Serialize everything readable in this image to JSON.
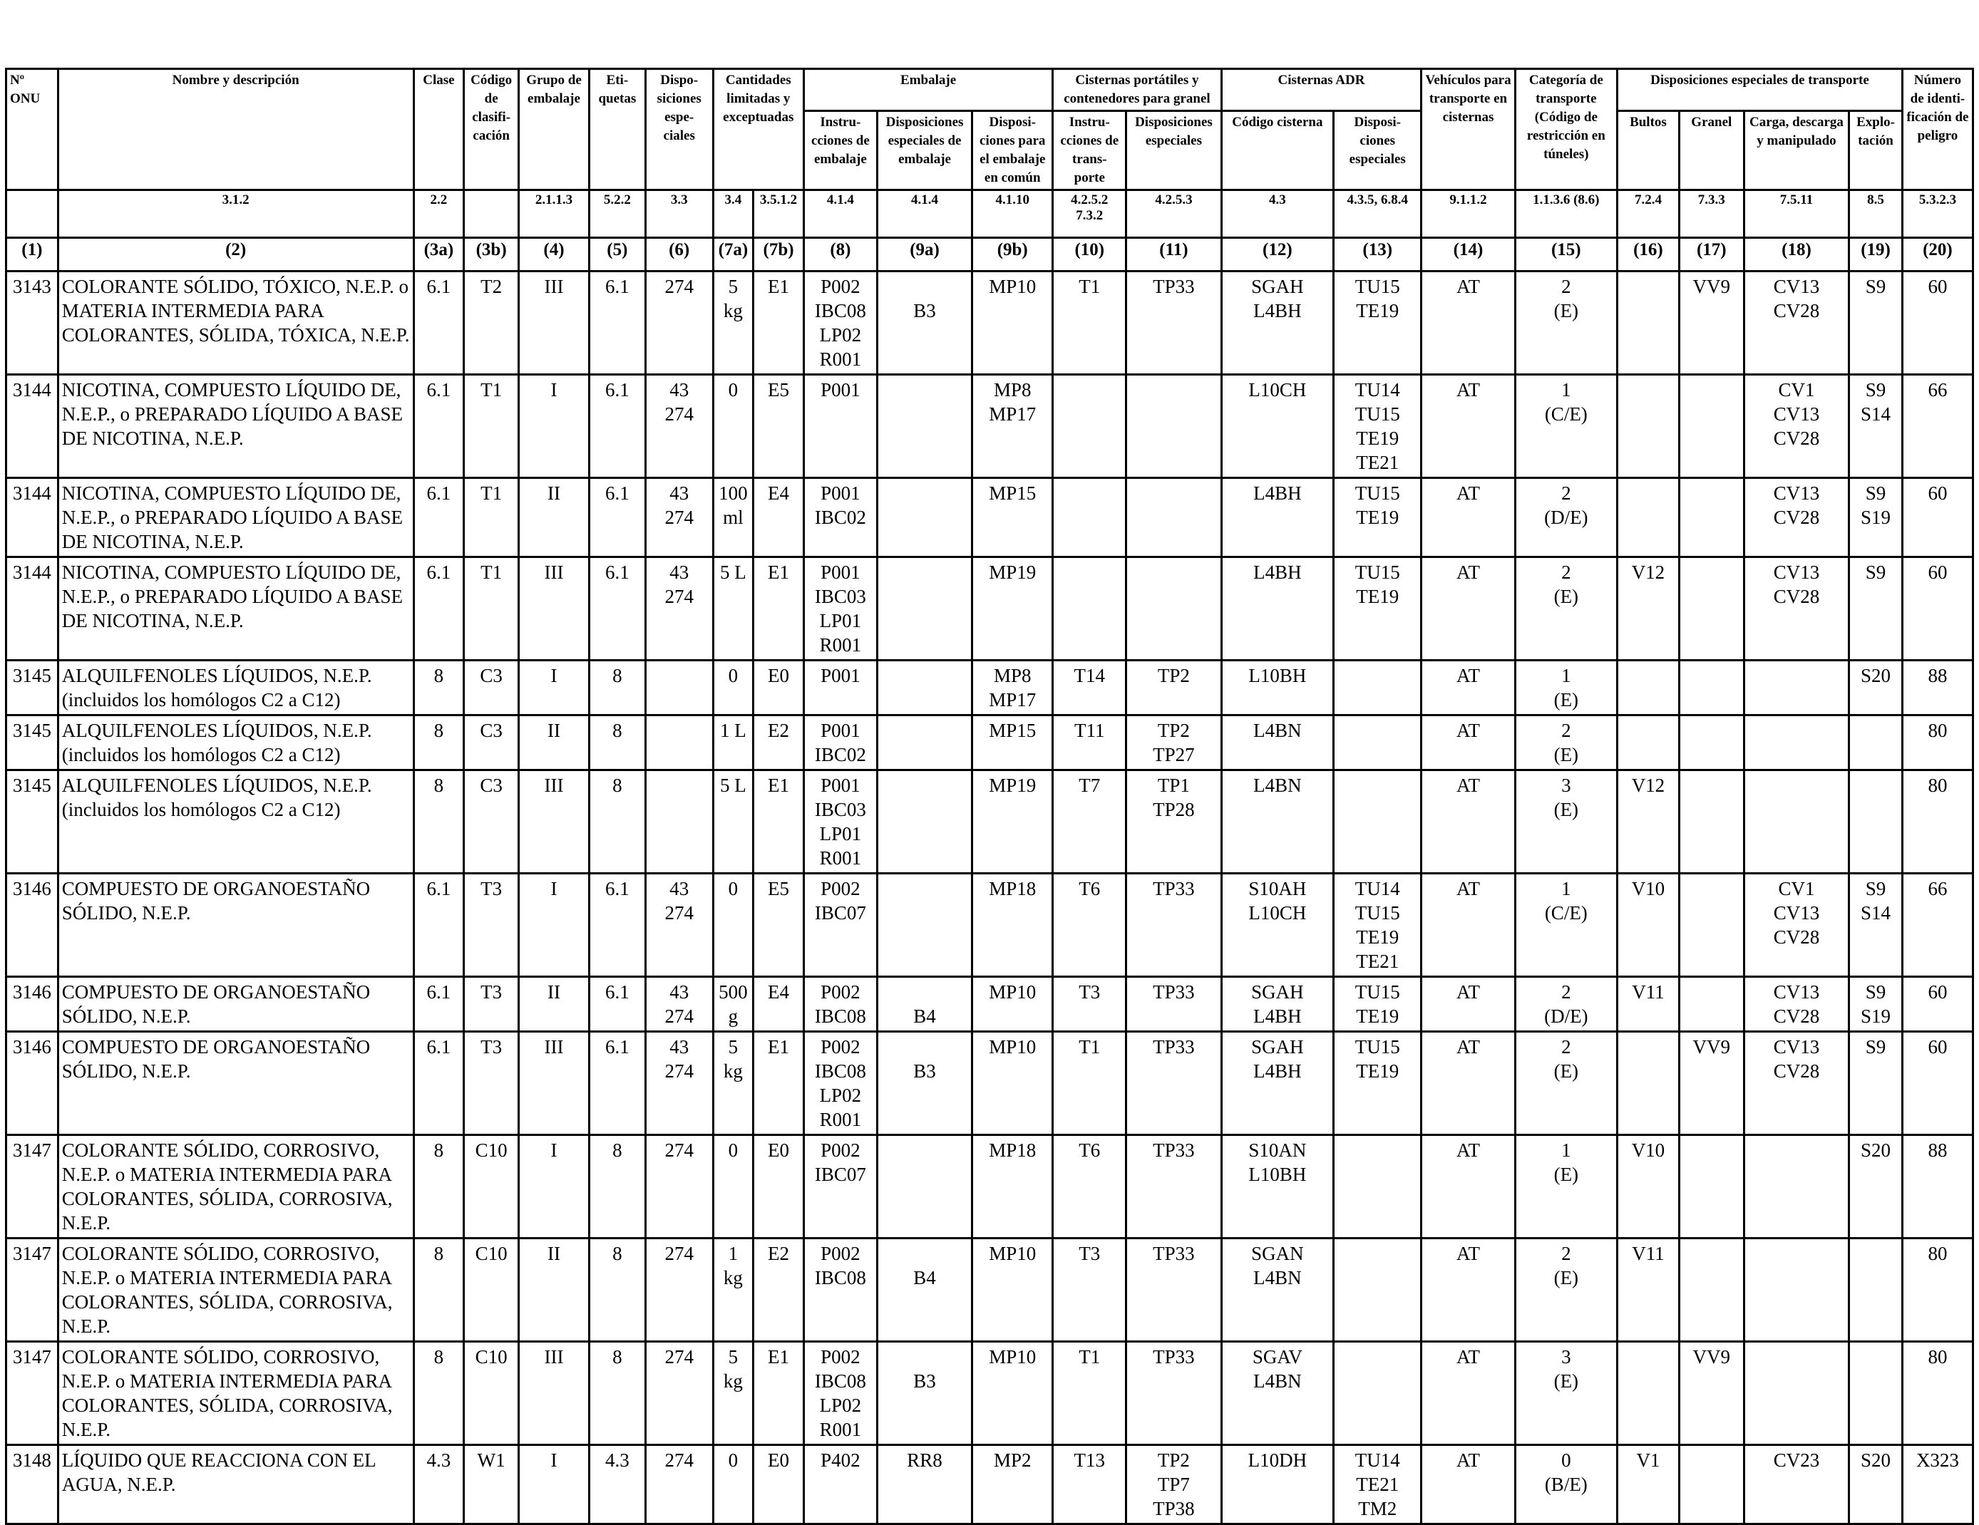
{
  "header": {
    "top": {
      "onu": "Nº ONU",
      "name": "Nombre y descripción",
      "clase": "Clase",
      "codigo": "Código de clasifi- cación",
      "grupo": "Grupo de embalaje",
      "etiquetas": "Eti- quetas",
      "disposiciones": "Dispo- siciones espe- ciales",
      "cantidades": "Cantidades limitadas y exceptuadas",
      "embalaje": "Embalaje",
      "cisternas_port": "Cisternas portátiles y contenedores para granel",
      "cisternas_adr": "Cisternas ADR",
      "vehiculos": "Vehículos para transporte en cisternas",
      "categoria": "Categoría de transporte (Código de restricción en túneles)",
      "disp_transporte": "Disposiciones especiales de transporte",
      "numero_ident": "Número de identi- ficación de peligro"
    },
    "sub": {
      "instr_embalaje": "Instru- cciones de embalaje",
      "disp_esp_embalaje": "Disposiciones especiales de embalaje",
      "disp_embalaje_comun": "Disposi- ciones para el embalaje en común",
      "instr_transporte": "Instru- cciones de trans- porte",
      "disp_esp_cisternas": "Disposiciones especiales",
      "codigo_cisterna": "Código cisterna",
      "disp_esp_adr": "Disposi- ciones especiales",
      "bultos": "Bultos",
      "granel": "Granel",
      "carga": "Carga, descarga y manipulado",
      "explotacion": "Explo- tación"
    },
    "refs": [
      "",
      "3.1.2",
      "2.2",
      "",
      "2.1.1.3",
      "5.2.2",
      "3.3",
      "3.4",
      "3.5.1.2",
      "4.1.4",
      "4.1.4",
      "4.1.10",
      "4.2.5.2 7.3.2",
      "4.2.5.3",
      "4.3",
      "4.3.5, 6.8.4",
      "9.1.1.2",
      "1.1.3.6 (8.6)",
      "7.2.4",
      "7.3.3",
      "7.5.11",
      "8.5",
      "5.3.2.3"
    ],
    "cols": [
      "(1)",
      "(2)",
      "(3a)",
      "(3b)",
      "(4)",
      "(5)",
      "(6)",
      "(7a)",
      "(7b)",
      "(8)",
      "(9a)",
      "(9b)",
      "(10)",
      "(11)",
      "(12)",
      "(13)",
      "(14)",
      "(15)",
      "(16)",
      "(17)",
      "(18)",
      "(19)",
      "(20)"
    ]
  },
  "rows": [
    [
      "3143",
      "COLORANTE SÓLIDO, TÓXICO, N.E.P. o MATERIA INTERMEDIA PARA COLORANTES, SÓLIDA, TÓXICA, N.E.P.",
      "6.1",
      "T2",
      "III",
      "6.1",
      "274",
      "5 kg",
      "E1",
      "P002\nIBC08\nLP02\nR001",
      "\nB3",
      "MP10",
      "T1",
      "TP33",
      "SGAH\nL4BH",
      "TU15\nTE19",
      "AT",
      "2\n(E)",
      "",
      "VV9",
      "CV13\nCV28",
      "S9",
      "60"
    ],
    [
      "3144",
      "NICOTINA, COMPUESTO LÍQUIDO DE, N.E.P., o PREPARADO LÍQUIDO A BASE DE NICOTINA, N.E.P.",
      "6.1",
      "T1",
      "I",
      "6.1",
      "43\n274",
      "0",
      "E5",
      "P001",
      "",
      "MP8\nMP17",
      "",
      "",
      "L10CH",
      "TU14\nTU15\nTE19\nTE21",
      "AT",
      "1\n(C/E)",
      "",
      "",
      "CV1\nCV13\nCV28",
      "S9\nS14",
      "66"
    ],
    [
      "3144",
      "NICOTINA, COMPUESTO LÍQUIDO DE, N.E.P., o PREPARADO LÍQUIDO A BASE DE NICOTINA, N.E.P.",
      "6.1",
      "T1",
      "II",
      "6.1",
      "43\n274",
      "100\nml",
      "E4",
      "P001\nIBC02",
      "",
      "MP15",
      "",
      "",
      "L4BH",
      "TU15\nTE19",
      "AT",
      "2\n(D/E)",
      "",
      "",
      "CV13\nCV28",
      "S9\nS19",
      "60"
    ],
    [
      "3144",
      "NICOTINA, COMPUESTO LÍQUIDO DE, N.E.P., o PREPARADO LÍQUIDO A BASE DE NICOTINA, N.E.P.",
      "6.1",
      "T1",
      "III",
      "6.1",
      "43\n274",
      "5 L",
      "E1",
      "P001\nIBC03\nLP01\nR001",
      "",
      "MP19",
      "",
      "",
      "L4BH",
      "TU15\nTE19",
      "AT",
      "2\n(E)",
      "V12",
      "",
      "CV13\nCV28",
      "S9",
      "60"
    ],
    [
      "3145",
      "ALQUILFENOLES LÍQUIDOS, N.E.P. (incluidos los homólogos C2 a C12)",
      "8",
      "C3",
      "I",
      "8",
      "",
      "0",
      "E0",
      "P001",
      "",
      "MP8\nMP17",
      "T14",
      "TP2",
      "L10BH",
      "",
      "AT",
      "1\n(E)",
      "",
      "",
      "",
      "S20",
      "88"
    ],
    [
      "3145",
      "ALQUILFENOLES LÍQUIDOS, N.E.P. (incluidos los homólogos C2 a C12)",
      "8",
      "C3",
      "II",
      "8",
      "",
      "1 L",
      "E2",
      "P001\nIBC02",
      "",
      "MP15",
      "T11",
      "TP2\nTP27",
      "L4BN",
      "",
      "AT",
      "2\n(E)",
      "",
      "",
      "",
      "",
      "80"
    ],
    [
      "3145",
      "ALQUILFENOLES LÍQUIDOS, N.E.P. (incluidos los homólogos C2 a C12)",
      "8",
      "C3",
      "III",
      "8",
      "",
      "5 L",
      "E1",
      "P001\nIBC03\nLP01\nR001",
      "",
      "MP19",
      "T7",
      "TP1\nTP28",
      "L4BN",
      "",
      "AT",
      "3\n(E)",
      "V12",
      "",
      "",
      "",
      "80"
    ],
    [
      "3146",
      "COMPUESTO DE ORGANOESTAÑO SÓLIDO, N.E.P.",
      "6.1",
      "T3",
      "I",
      "6.1",
      "43\n274",
      "0",
      "E5",
      "P002\nIBC07",
      "",
      "MP18",
      "T6",
      "TP33",
      "S10AH\nL10CH",
      "TU14\nTU15\nTE19\nTE21",
      "AT",
      "1\n(C/E)",
      "V10",
      "",
      "CV1\nCV13\nCV28",
      "S9\nS14",
      "66"
    ],
    [
      "3146",
      "COMPUESTO DE ORGANOESTAÑO SÓLIDO, N.E.P.",
      "6.1",
      "T3",
      "II",
      "6.1",
      "43\n274",
      "500\ng",
      "E4",
      "P002\nIBC08",
      "\nB4",
      "MP10",
      "T3",
      "TP33",
      "SGAH\nL4BH",
      "TU15\nTE19",
      "AT",
      "2\n(D/E)",
      "V11",
      "",
      "CV13\nCV28",
      "S9\nS19",
      "60"
    ],
    [
      "3146",
      "COMPUESTO DE ORGANOESTAÑO SÓLIDO, N.E.P.",
      "6.1",
      "T3",
      "III",
      "6.1",
      "43\n274",
      "5 kg",
      "E1",
      "P002\nIBC08\nLP02\nR001",
      "\nB3",
      "MP10",
      "T1",
      "TP33",
      "SGAH\nL4BH",
      "TU15\nTE19",
      "AT",
      "2\n(E)",
      "",
      "VV9",
      "CV13\nCV28",
      "S9",
      "60"
    ],
    [
      "3147",
      "COLORANTE SÓLIDO, CORROSIVO, N.E.P. o MATERIA INTERMEDIA PARA COLORANTES, SÓLIDA, CORROSIVA, N.E.P.",
      "8",
      "C10",
      "I",
      "8",
      "274",
      "0",
      "E0",
      "P002\nIBC07",
      "",
      "MP18",
      "T6",
      "TP33",
      "S10AN\nL10BH",
      "",
      "AT",
      "1\n(E)",
      "V10",
      "",
      "",
      "S20",
      "88"
    ],
    [
      "3147",
      "COLORANTE SÓLIDO, CORROSIVO, N.E.P. o MATERIA INTERMEDIA PARA COLORANTES, SÓLIDA, CORROSIVA, N.E.P.",
      "8",
      "C10",
      "II",
      "8",
      "274",
      "1 kg",
      "E2",
      "P002\nIBC08",
      "\nB4",
      "MP10",
      "T3",
      "TP33",
      "SGAN\nL4BN",
      "",
      "AT",
      "2\n(E)",
      "V11",
      "",
      "",
      "",
      "80"
    ],
    [
      "3147",
      "COLORANTE SÓLIDO, CORROSIVO, N.E.P. o MATERIA INTERMEDIA PARA COLORANTES, SÓLIDA, CORROSIVA, N.E.P.",
      "8",
      "C10",
      "III",
      "8",
      "274",
      "5 kg",
      "E1",
      "P002\nIBC08\nLP02\nR001",
      "\nB3",
      "MP10",
      "T1",
      "TP33",
      "SGAV\nL4BN",
      "",
      "AT",
      "3\n(E)",
      "",
      "VV9",
      "",
      "",
      "80"
    ],
    [
      "3148",
      "LÍQUIDO QUE REACCIONA CON EL AGUA, N.E.P.",
      "4.3",
      "W1",
      "I",
      "4.3",
      "274",
      "0",
      "E0",
      "P402",
      "RR8",
      "MP2",
      "T13",
      "TP2\nTP7\nTP38",
      "L10DH",
      "TU14\nTE21 TM2",
      "AT",
      "0\n(B/E)",
      "V1",
      "",
      "CV23",
      "S20",
      "X323"
    ]
  ]
}
